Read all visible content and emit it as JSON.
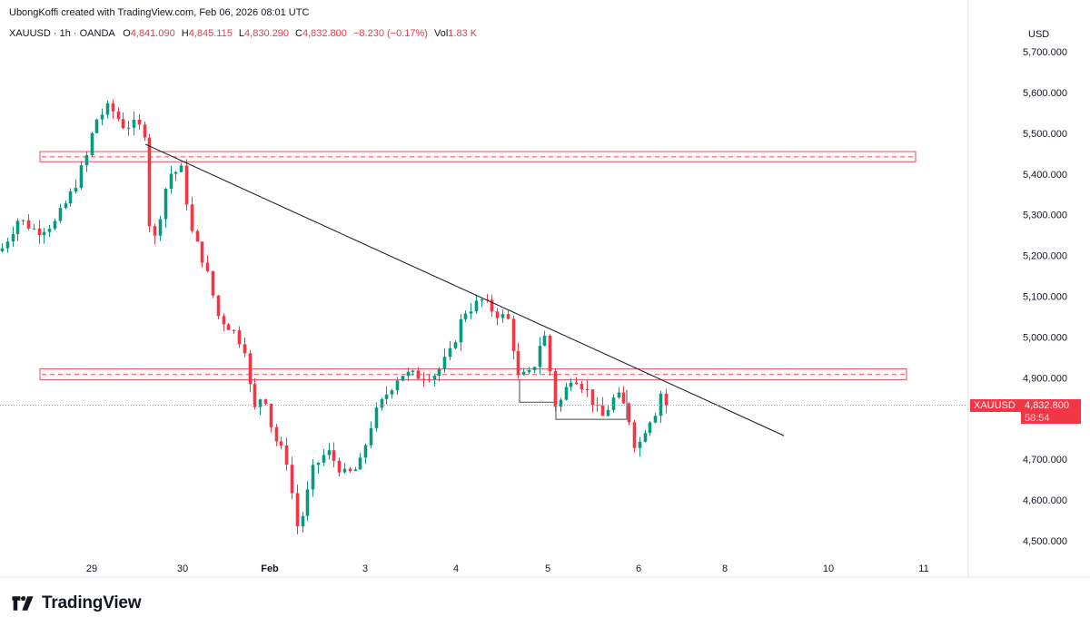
{
  "attribution": "UbongKoffi created with TradingView.com, Feb 06, 2026 08:01 UTC",
  "legend": {
    "symbol": "XAUUSD · 1h · OANDA",
    "open_key": "O",
    "open": "4,841.090",
    "high_key": "H",
    "high": "4,845.115",
    "low_key": "L",
    "low": "4,830.290",
    "close_key": "C",
    "close": "4,832.800",
    "change": "−8.230 (−0.17%)",
    "vol_key": "Vol",
    "vol": "1.83 K"
  },
  "currency": "USD",
  "last_price": {
    "symbol": "XAUUSD",
    "price": "4,832.800",
    "countdown": "58:54",
    "value": 4832.8
  },
  "brand": {
    "name": "TradingView",
    "logo_icon": "tradingview-logo-icon"
  },
  "colors": {
    "up": "#089981",
    "down": "#f23645",
    "zone": "#e0556a",
    "trend": "#131722"
  },
  "chart_data": {
    "type": "candlestick",
    "timeframe": "1h",
    "ylim": [
      4460,
      5740
    ],
    "y_ticks": [
      {
        "label": "5,700.000",
        "value": 5700
      },
      {
        "label": "5,600.000",
        "value": 5600
      },
      {
        "label": "5,500.000",
        "value": 5500
      },
      {
        "label": "5,400.000",
        "value": 5400
      },
      {
        "label": "5,300.000",
        "value": 5300
      },
      {
        "label": "5,200.000",
        "value": 5200
      },
      {
        "label": "5,100.000",
        "value": 5100
      },
      {
        "label": "5,000.000",
        "value": 5000
      },
      {
        "label": "4,900.000",
        "value": 4900
      },
      {
        "label": "4,700.000",
        "value": 4700
      },
      {
        "label": "4,600.000",
        "value": 4600
      },
      {
        "label": "4,500.000",
        "value": 4500
      }
    ],
    "x_ticks": [
      {
        "label": "29",
        "day": 29
      },
      {
        "label": "30",
        "day": 30
      },
      {
        "label": "Feb",
        "day": 31
      },
      {
        "label": "3",
        "day": 32
      },
      {
        "label": "4",
        "day": 33
      },
      {
        "label": "5",
        "day": 34
      },
      {
        "label": "6",
        "day": 35
      },
      {
        "label": "8",
        "day": 36
      },
      {
        "label": "10",
        "day": 37
      },
      {
        "label": "11",
        "day": 38
      }
    ],
    "anchors": [
      {
        "t": 0,
        "p": 5210
      },
      {
        "t": 20,
        "p": 5290
      },
      {
        "t": 40,
        "p": 5260
      },
      {
        "t": 60,
        "p": 5280
      },
      {
        "t": 80,
        "p": 5360
      },
      {
        "t": 96,
        "p": 5450
      },
      {
        "t": 104,
        "p": 5530
      },
      {
        "t": 120,
        "p": 5565
      },
      {
        "t": 135,
        "p": 5520
      },
      {
        "t": 150,
        "p": 5520
      },
      {
        "t": 160,
        "p": 5500
      },
      {
        "t": 166,
        "p": 5200
      },
      {
        "t": 172,
        "p": 5260
      },
      {
        "t": 185,
        "p": 5400
      },
      {
        "t": 200,
        "p": 5410
      },
      {
        "t": 210,
        "p": 5260
      },
      {
        "t": 225,
        "p": 5180
      },
      {
        "t": 240,
        "p": 5050
      },
      {
        "t": 255,
        "p": 5020
      },
      {
        "t": 270,
        "p": 4970
      },
      {
        "t": 278,
        "p": 4810
      },
      {
        "t": 290,
        "p": 4870
      },
      {
        "t": 300,
        "p": 4760
      },
      {
        "t": 315,
        "p": 4700
      },
      {
        "t": 328,
        "p": 4520
      },
      {
        "t": 345,
        "p": 4680
      },
      {
        "t": 360,
        "p": 4720
      },
      {
        "t": 380,
        "p": 4660
      },
      {
        "t": 395,
        "p": 4680
      },
      {
        "t": 410,
        "p": 4800
      },
      {
        "t": 425,
        "p": 4860
      },
      {
        "t": 440,
        "p": 4910
      },
      {
        "t": 460,
        "p": 4905
      },
      {
        "t": 480,
        "p": 4910
      },
      {
        "t": 495,
        "p": 4960
      },
      {
        "t": 510,
        "p": 5060
      },
      {
        "t": 530,
        "p": 5090
      },
      {
        "t": 545,
        "p": 5060
      },
      {
        "t": 560,
        "p": 5040
      },
      {
        "t": 570,
        "p": 4900
      },
      {
        "t": 585,
        "p": 4910
      },
      {
        "t": 598,
        "p": 5020
      },
      {
        "t": 612,
        "p": 4820
      },
      {
        "t": 630,
        "p": 4910
      },
      {
        "t": 645,
        "p": 4870
      },
      {
        "t": 662,
        "p": 4800
      },
      {
        "t": 678,
        "p": 4860
      },
      {
        "t": 690,
        "p": 4820
      },
      {
        "t": 700,
        "p": 4720
      },
      {
        "t": 712,
        "p": 4790
      },
      {
        "t": 722,
        "p": 4820
      },
      {
        "t": 730,
        "p": 4890
      },
      {
        "t": 738,
        "p": 4833
      }
    ],
    "zones": [
      {
        "name": "upper-resistance-zone",
        "from_t": 44,
        "to_t": 1008,
        "low": 5430,
        "high": 5455,
        "mid": 5442
      },
      {
        "name": "lower-support-zone",
        "from_t": 44,
        "to_t": 998,
        "low": 4895,
        "high": 4922,
        "mid": 4908
      }
    ],
    "trendline": {
      "from": {
        "t": 160,
        "p": 5473
      },
      "to": {
        "t": 863,
        "p": 4758
      }
    },
    "rectangles": [
      {
        "from_t": 572,
        "to_t": 612,
        "top": 4895,
        "bottom": 4840
      },
      {
        "from_t": 612,
        "to_t": 690,
        "top": 4870,
        "bottom": 4798
      }
    ]
  }
}
